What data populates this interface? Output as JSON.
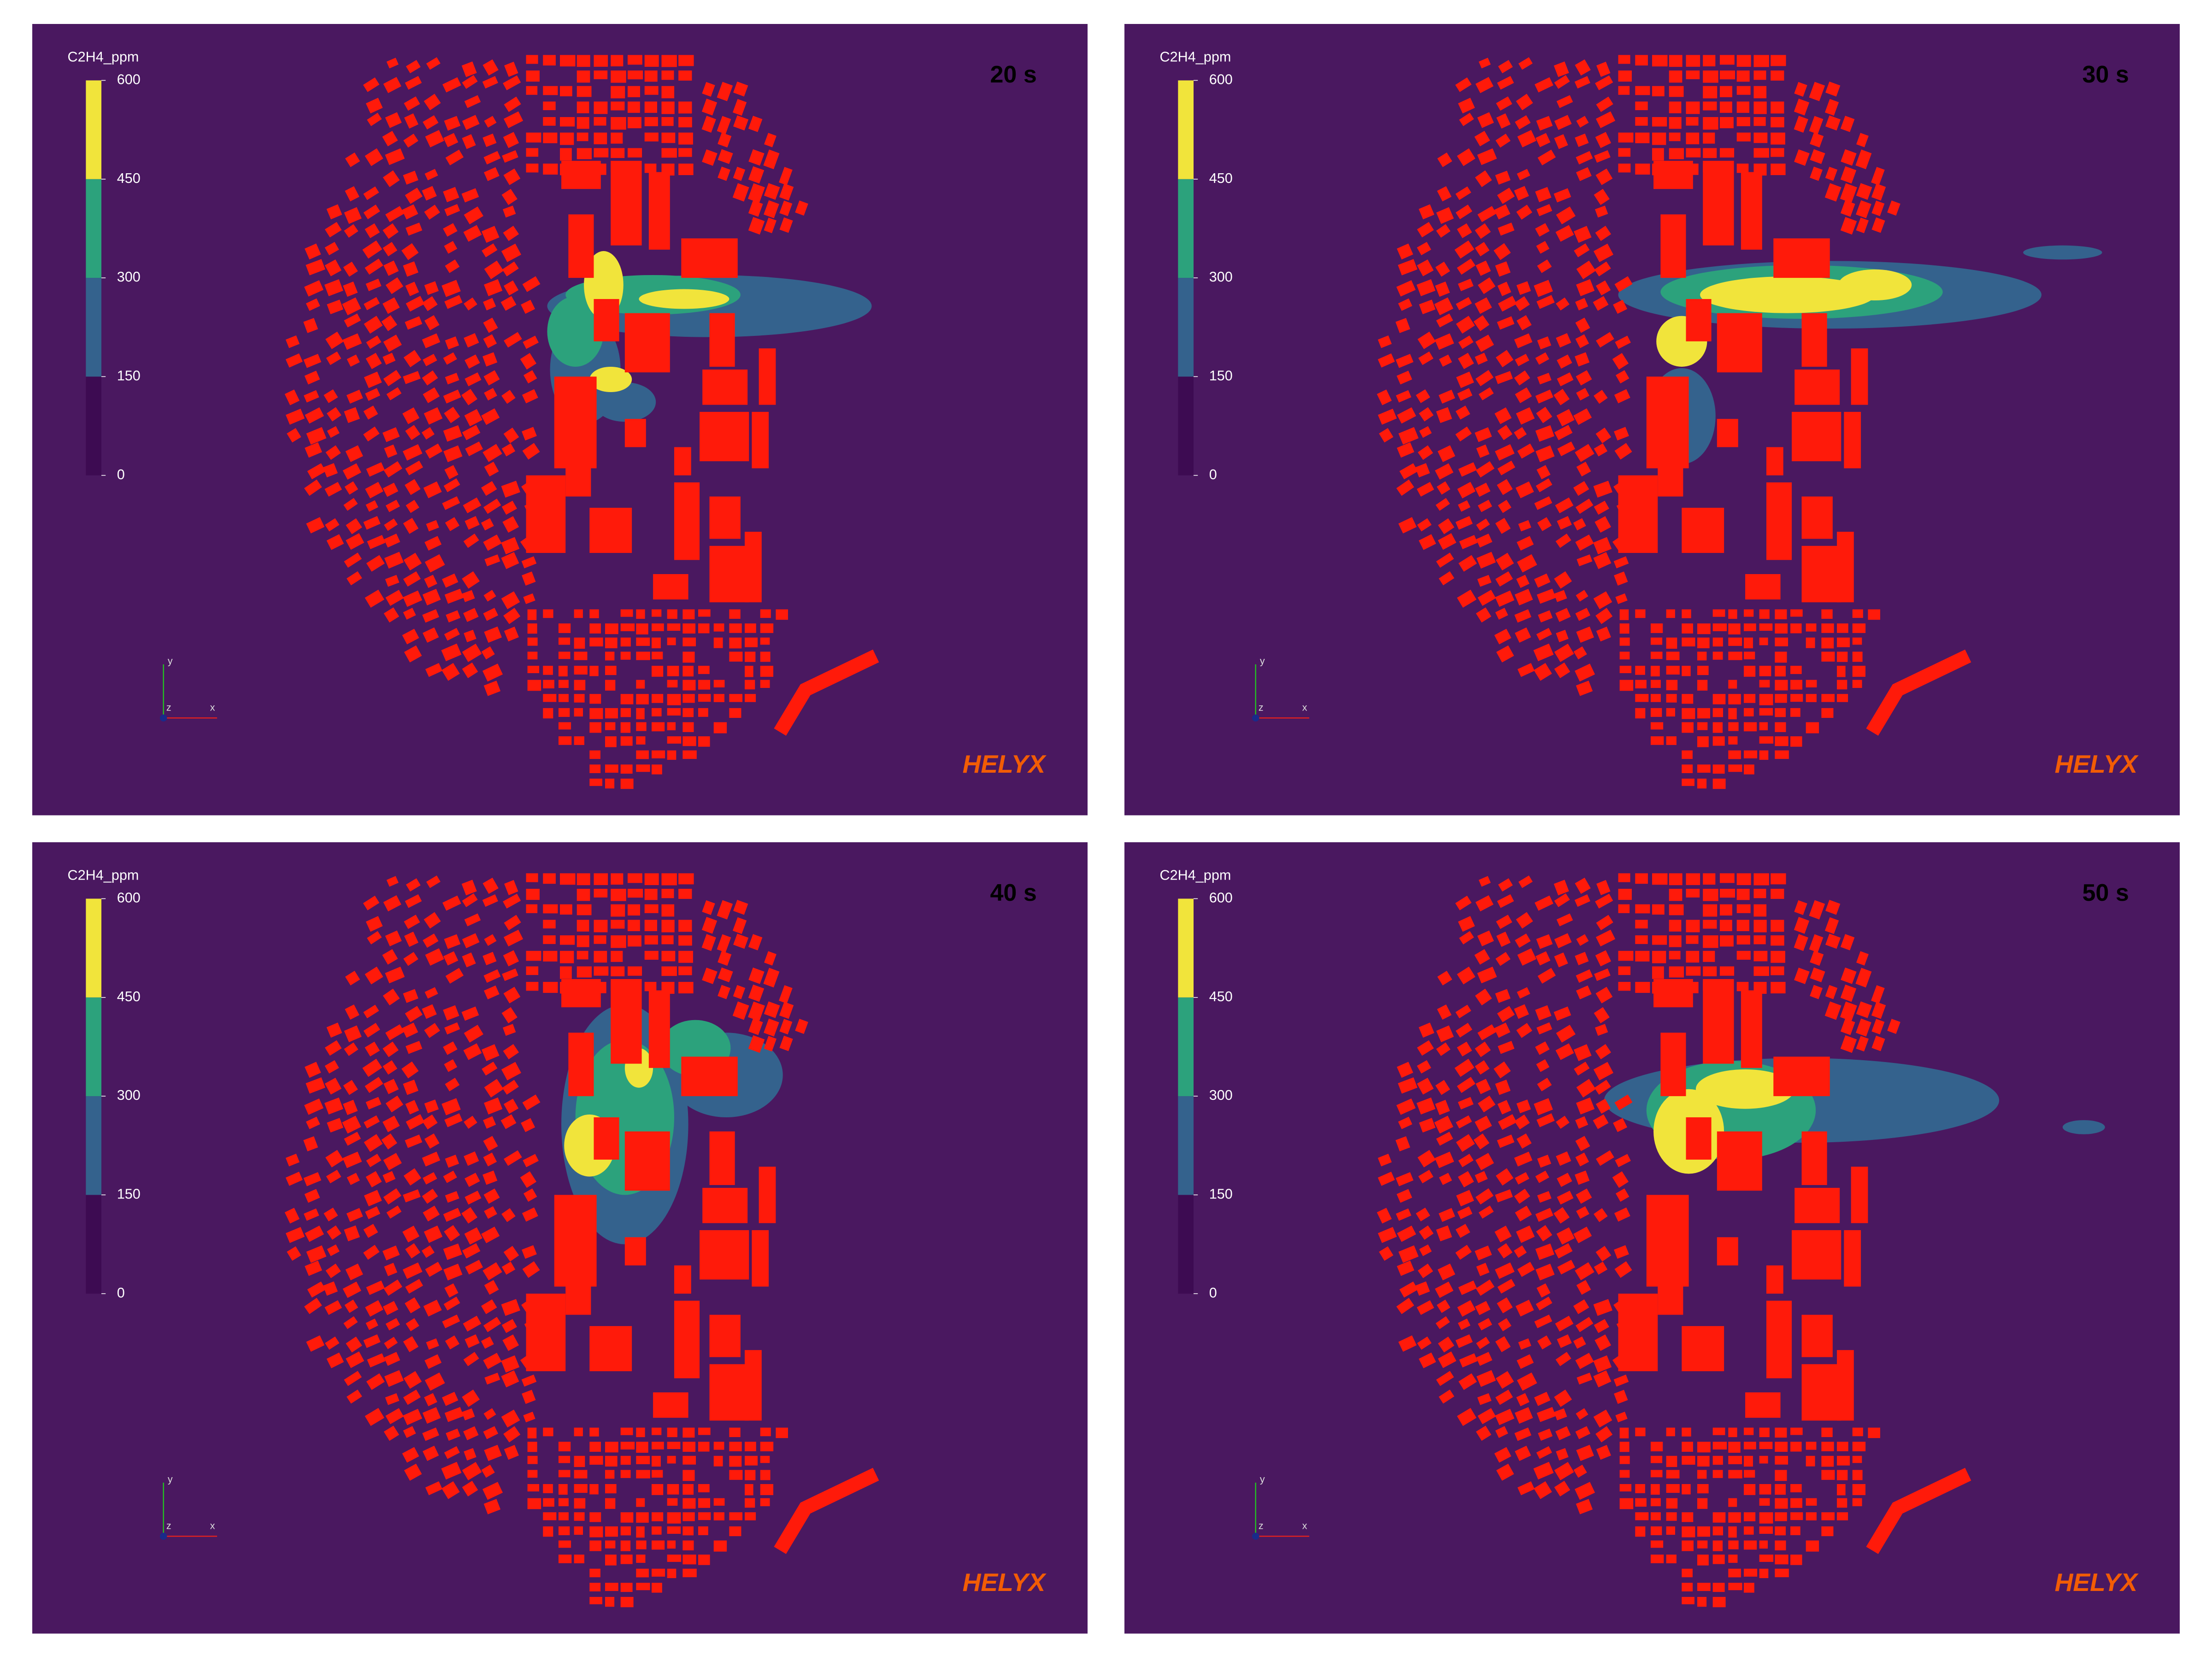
{
  "panels": [
    {
      "time": "20 s",
      "logo": "HELYX",
      "axes": {
        "x": "x",
        "y": "y",
        "z": "z"
      },
      "colorbar": {
        "title": "C2H4_ppm",
        "ticks": [
          0,
          150,
          300,
          450,
          600
        ],
        "colors": [
          "#3d0b52",
          "#34628d",
          "#2ca27c",
          "#f1e43b"
        ]
      }
    },
    {
      "time": "30 s",
      "logo": "HELYX",
      "axes": {
        "x": "x",
        "y": "y",
        "z": "z"
      },
      "colorbar": {
        "title": "C2H4_ppm",
        "ticks": [
          0,
          150,
          300,
          450,
          600
        ],
        "colors": [
          "#3d0b52",
          "#34628d",
          "#2ca27c",
          "#f1e43b"
        ]
      }
    },
    {
      "time": "40 s",
      "logo": "HELYX",
      "axes": {
        "x": "x",
        "y": "y",
        "z": "z"
      },
      "colorbar": {
        "title": "C2H4_ppm",
        "ticks": [
          0,
          150,
          300,
          450,
          600
        ],
        "colors": [
          "#3d0b52",
          "#34628d",
          "#2ca27c",
          "#f1e43b"
        ]
      }
    },
    {
      "time": "50 s",
      "logo": "HELYX",
      "axes": {
        "x": "x",
        "y": "y",
        "z": "z"
      },
      "colorbar": {
        "title": "C2H4_ppm",
        "ticks": [
          0,
          150,
          300,
          450,
          600
        ],
        "colors": [
          "#3d0b52",
          "#34628d",
          "#2ca27c",
          "#f1e43b"
        ]
      }
    }
  ]
}
